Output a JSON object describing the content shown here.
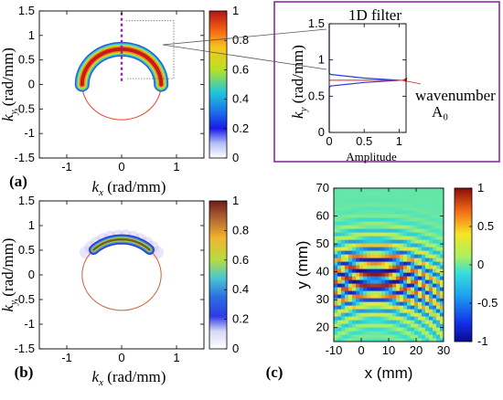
{
  "chart_data": [
    {
      "id": "a",
      "type": "heatmap",
      "panel_label": "(a)",
      "xlabel_var": "k",
      "xlabel_sub": "x",
      "xlabel_unit": " (rad/mm)",
      "ylabel_var": "k",
      "ylabel_sub": "y",
      "ylabel_unit": " (rad/mm)",
      "xlim": [
        -1.5,
        1.5
      ],
      "ylim": [
        -1.5,
        1.5
      ],
      "xticks": [
        -1,
        0,
        1
      ],
      "yticks": [
        1.5,
        1,
        0.5,
        0,
        -0.5,
        -1,
        -1.5
      ],
      "circle": {
        "center": [
          0,
          0
        ],
        "radius": 0.72,
        "color": "#e8402a"
      },
      "band": {
        "radius": 0.72,
        "from_deg": 0,
        "to_deg": 180
      },
      "cut_line": {
        "x": 0,
        "y_from": 0.07,
        "y_to": 1.5,
        "color": "#8b2ca0"
      },
      "colorbar": {
        "min": 0,
        "max": 1,
        "ticks": [
          1,
          0.8,
          0.6,
          0.4,
          0.2,
          0
        ]
      }
    },
    {
      "id": "filter",
      "type": "line",
      "title": "1D filter",
      "xlabel": "Amplitude",
      "ylabel_var": "k",
      "ylabel_sub": "y",
      "ylabel_unit": " (rad/mm)",
      "xlim": [
        0,
        1.1
      ],
      "ylim": [
        0,
        1.5
      ],
      "xticks": [
        0,
        0.5,
        1
      ],
      "yticks": [
        1.5,
        1,
        0.5,
        0
      ],
      "x": [
        0,
        0,
        0.02,
        0.5,
        1,
        0.5,
        0.02,
        0,
        0
      ],
      "y": [
        0,
        0.62,
        0.64,
        0.69,
        0.72,
        0.75,
        0.8,
        0.82,
        1.5
      ],
      "series_color": "#2b3bd6",
      "wavenumber_line": {
        "y": 0.72,
        "color": "#e02020"
      },
      "annotation_a0": "A₀",
      "annotation_wavenumber": "wavenumber"
    },
    {
      "id": "b",
      "type": "heatmap",
      "panel_label": "(b)",
      "xlabel_var": "k",
      "xlabel_sub": "x",
      "xlabel_unit": " (rad/mm)",
      "ylabel_var": "k",
      "ylabel_sub": "y",
      "ylabel_unit": " (rad/mm)",
      "xlim": [
        -1.5,
        1.5
      ],
      "ylim": [
        -1.5,
        1.5
      ],
      "xticks": [
        -1,
        0,
        1
      ],
      "yticks": [
        1.5,
        1,
        0.5,
        0,
        -0.5,
        -1,
        -1.5
      ],
      "circle": {
        "center": [
          0,
          0
        ],
        "radius": 0.72,
        "color": "#c8643c"
      },
      "band": {
        "radius": 0.72,
        "from_deg": 45,
        "to_deg": 135
      },
      "colorbar": {
        "min": 0,
        "max": 1,
        "ticks": [
          1,
          0.8,
          0.6,
          0.4,
          0.2,
          0
        ]
      }
    },
    {
      "id": "c",
      "type": "heatmap",
      "panel_label": "(c)",
      "xlabel": "x (mm)",
      "ylabel": "y (mm)",
      "xlim": [
        -10,
        30
      ],
      "ylim": [
        15,
        70
      ],
      "xticks": [
        -10,
        0,
        10,
        20,
        30
      ],
      "yticks": [
        70,
        60,
        50,
        40,
        30,
        20
      ],
      "wave": {
        "source": [
          5,
          -5
        ],
        "wavelength": 3.6
      },
      "colorbar": {
        "min": -1,
        "max": 1,
        "ticks": [
          1,
          0.5,
          0,
          -0.5,
          -1
        ]
      }
    }
  ]
}
